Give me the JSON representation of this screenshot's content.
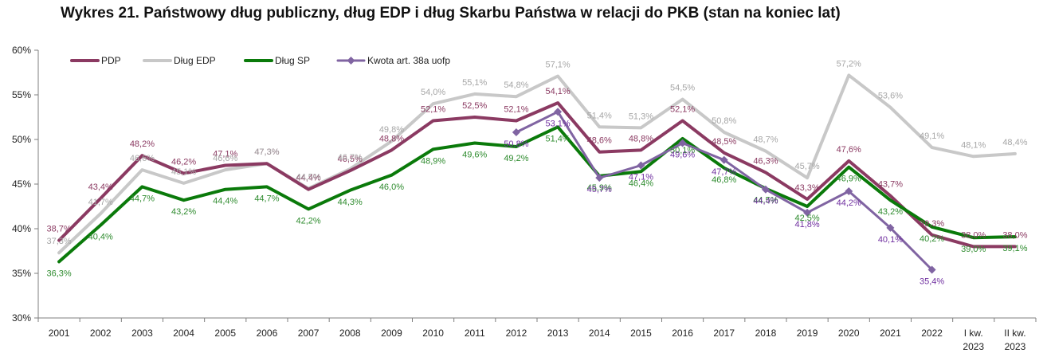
{
  "title": "Wykres 21. Państwowy dług publiczny, dług EDP i dług Skarbu Państwa w relacji do PKB (stan na koniec lat)",
  "chart_data": {
    "type": "line",
    "title": "Wykres 21. Państwowy dług publiczny, dług EDP i dług Skarbu Państwa w relacji do PKB (stan na koniec lat)",
    "xlabel": "",
    "ylabel": "",
    "ylim": [
      30,
      60
    ],
    "yticks": [
      "30%",
      "35%",
      "40%",
      "45%",
      "50%",
      "55%",
      "60%"
    ],
    "categories": [
      [
        "2001"
      ],
      [
        "2002"
      ],
      [
        "2003"
      ],
      [
        "2004"
      ],
      [
        "2005"
      ],
      [
        "2006"
      ],
      [
        "2007"
      ],
      [
        "2008"
      ],
      [
        "2009"
      ],
      [
        "2010"
      ],
      [
        "2011"
      ],
      [
        "2012"
      ],
      [
        "2013"
      ],
      [
        "2014"
      ],
      [
        "2015"
      ],
      [
        "2016"
      ],
      [
        "2017"
      ],
      [
        "2018"
      ],
      [
        "2019"
      ],
      [
        "2020"
      ],
      [
        "2021"
      ],
      [
        "2022"
      ],
      [
        "I kw.",
        "2023"
      ],
      [
        "II kw.",
        "2023"
      ]
    ],
    "grid": false,
    "legend_position": "top-left",
    "series": [
      {
        "name": "PDP",
        "color": "#8B3A62",
        "values": [
          38.7,
          43.4,
          48.2,
          46.2,
          47.1,
          47.3,
          44.4,
          46.5,
          48.8,
          52.1,
          52.5,
          52.1,
          54.1,
          48.6,
          48.8,
          52.1,
          48.5,
          46.3,
          43.3,
          47.6,
          43.7,
          39.3,
          38.0,
          38.0
        ],
        "labels": [
          "38,7%",
          "43,4%",
          "48,2%",
          "46,2%",
          "47,1%",
          "47,3%",
          "44,4%",
          "46,5%",
          "48,8%",
          "52,1%",
          "52,5%",
          "52,1%",
          "54,1%",
          "48,6%",
          "48,8%",
          "52,1%",
          "48,5%",
          "46,3%",
          "43,3%",
          "47,6%",
          "43,7%",
          "39,3%",
          "38,0%",
          "38,0%"
        ]
      },
      {
        "name": "Dług EDP",
        "color": "#C8C8C8",
        "values": [
          37.3,
          41.7,
          46.6,
          45.1,
          46.6,
          47.3,
          44.5,
          46.7,
          49.8,
          54.0,
          55.1,
          54.8,
          57.1,
          51.4,
          51.3,
          54.5,
          50.8,
          48.7,
          45.7,
          57.2,
          53.6,
          49.1,
          48.1,
          48.4
        ],
        "labels": [
          "37,3%",
          "41,7%",
          "46,6%",
          "45,1%",
          "46,6%",
          "47,3%",
          "44,5%",
          "46,7%",
          "49,8%",
          "54,0%",
          "55,1%",
          "54,8%",
          "57,1%",
          "51,4%",
          "51,3%",
          "54,5%",
          "50,8%",
          "48,7%",
          "45,7%",
          "57,2%",
          "53,6%",
          "49,1%",
          "48,1%",
          "48,4%"
        ]
      },
      {
        "name": "Dług SP",
        "color": "#0A7A0A",
        "values": [
          36.3,
          40.4,
          44.7,
          43.2,
          44.4,
          44.7,
          42.2,
          44.3,
          46.0,
          48.9,
          49.6,
          49.2,
          51.4,
          45.9,
          46.4,
          50.1,
          46.8,
          44.5,
          42.5,
          46.9,
          43.2,
          40.2,
          39.0,
          39.1
        ],
        "labels": [
          "36,3%",
          "40,4%",
          "44,7%",
          "43,2%",
          "44,4%",
          "44,7%",
          "42,2%",
          "44,3%",
          "46,0%",
          "48,9%",
          "49,6%",
          "49,2%",
          "51,4%",
          "45,9%",
          "46,4%",
          "50,1%",
          "46,8%",
          "44,5%",
          "42,5%",
          "46,9%",
          "43,2%",
          "40,2%",
          "39,0%",
          "39,1%"
        ]
      },
      {
        "name": "Kwota art. 38a uofp",
        "color": "#8064A2",
        "markers": true,
        "values": [
          null,
          null,
          null,
          null,
          null,
          null,
          null,
          null,
          null,
          null,
          null,
          50.8,
          53.1,
          45.7,
          47.1,
          49.6,
          47.7,
          44.4,
          41.8,
          44.2,
          40.1,
          35.4,
          null,
          null
        ],
        "labels": [
          null,
          null,
          null,
          null,
          null,
          null,
          null,
          null,
          null,
          null,
          null,
          "50,8%",
          "53,1%",
          "45,7%",
          "47,1%",
          "49,6%",
          "47,7%",
          "44,4%",
          "41,8%",
          "44,2%",
          "40,1%",
          "35,4%",
          null,
          null
        ]
      }
    ]
  }
}
